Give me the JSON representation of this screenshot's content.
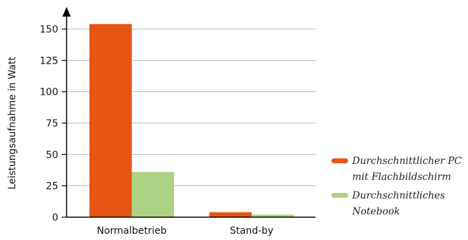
{
  "chart_data": {
    "type": "bar",
    "ylabel": "Leistungsaufnahme in Watt",
    "xlabel": "",
    "ylim": [
      0,
      150
    ],
    "yticks": [
      0,
      25,
      50,
      75,
      100,
      125,
      150
    ],
    "categories": [
      "Normalbetrieb",
      "Stand-by"
    ],
    "series": [
      {
        "name": "Durchschnittlicher PC mit Flachbildschirm",
        "color": "#e55514",
        "values": [
          154,
          4
        ]
      },
      {
        "name": "Durchschnittliches Notebook",
        "color": "#acd182",
        "values": [
          36,
          2
        ]
      }
    ],
    "grid": true,
    "legend_position": "right"
  }
}
